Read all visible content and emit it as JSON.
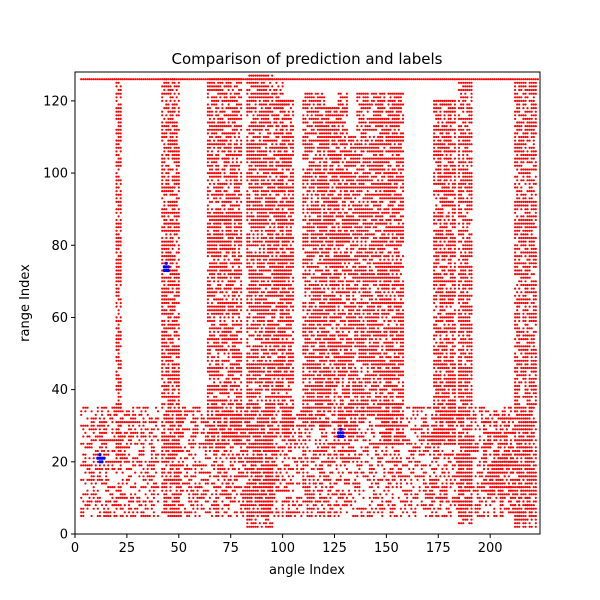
{
  "chart_data": {
    "type": "scatter",
    "title": "Comparison of prediction and labels",
    "xlabel": "angle Index",
    "ylabel": "range Index",
    "xlim": [
      0,
      224
    ],
    "ylim": [
      0,
      128
    ],
    "xticks": [
      0,
      25,
      50,
      75,
      100,
      125,
      150,
      175,
      200
    ],
    "yticks": [
      0,
      20,
      40,
      60,
      80,
      100,
      120
    ],
    "grid": false,
    "legend": "none",
    "series": [
      {
        "color": "#ff0000",
        "marker": "dot",
        "bands": [
          {
            "x": [
              3,
              223
            ],
            "y": [
              126,
              126
            ]
          },
          {
            "x": [
              20,
              22
            ],
            "y": [
              20,
              125
            ]
          },
          {
            "x": [
              42,
              50
            ],
            "y": [
              5,
              126
            ]
          },
          {
            "x": [
              64,
              80
            ],
            "y": [
              25,
              126
            ]
          },
          {
            "x": [
              83,
              95
            ],
            "y": [
              2,
              127
            ]
          },
          {
            "x": [
              96,
              100
            ],
            "y": [
              35,
              125
            ]
          },
          {
            "x": [
              100,
              105
            ],
            "y": [
              28,
              120
            ]
          },
          {
            "x": [
              110,
              120
            ],
            "y": [
              30,
              122
            ]
          },
          {
            "x": [
              121,
              126
            ],
            "y": [
              35,
              118
            ]
          },
          {
            "x": [
              127,
              131
            ],
            "y": [
              28,
              122
            ]
          },
          {
            "x": [
              132,
              135
            ],
            "y": [
              28,
              110
            ]
          },
          {
            "x": [
              136,
              146
            ],
            "y": [
              33,
              122
            ]
          },
          {
            "x": [
              147,
              158
            ],
            "y": [
              25,
              122
            ]
          },
          {
            "x": [
              173,
              183
            ],
            "y": [
              25,
              120
            ]
          },
          {
            "x": [
              185,
              191
            ],
            "y": [
              3,
              125
            ]
          },
          {
            "x": [
              197,
              211
            ],
            "y": [
              10,
              32
            ]
          },
          {
            "x": [
              212,
              222
            ],
            "y": [
              2,
              125
            ]
          },
          {
            "x": [
              3,
              40
            ],
            "y": [
              5,
              35
            ]
          },
          {
            "x": [
              50,
              220
            ],
            "y": [
              5,
              35
            ]
          }
        ],
        "points": [
          [
            52,
            31
          ],
          [
            55,
            29
          ],
          [
            58,
            27
          ],
          [
            60,
            25
          ],
          [
            62,
            31
          ],
          [
            33,
            30
          ],
          [
            37,
            28
          ],
          [
            25,
            15
          ],
          [
            27,
            13
          ],
          [
            29,
            11
          ],
          [
            31,
            9
          ],
          [
            58,
            11
          ],
          [
            60,
            13
          ],
          [
            63,
            15
          ],
          [
            119,
            30
          ],
          [
            121,
            32
          ],
          [
            123,
            34
          ],
          [
            168,
            30
          ],
          [
            170,
            28
          ],
          [
            172,
            26
          ]
        ]
      },
      {
        "color": "#0000ff",
        "marker": "dot",
        "points": [
          [
            43,
            73
          ],
          [
            44,
            73
          ],
          [
            45,
            73
          ],
          [
            43,
            74
          ],
          [
            44,
            74
          ],
          [
            45,
            74
          ],
          [
            44,
            75
          ],
          [
            11,
            21
          ],
          [
            12,
            21
          ],
          [
            13,
            21
          ],
          [
            14,
            21
          ],
          [
            12,
            20
          ],
          [
            13,
            20
          ],
          [
            12,
            22
          ],
          [
            127,
            27
          ],
          [
            128,
            27
          ],
          [
            129,
            27
          ],
          [
            127,
            28
          ],
          [
            128,
            28
          ],
          [
            129,
            28
          ],
          [
            128,
            29
          ]
        ]
      }
    ]
  }
}
